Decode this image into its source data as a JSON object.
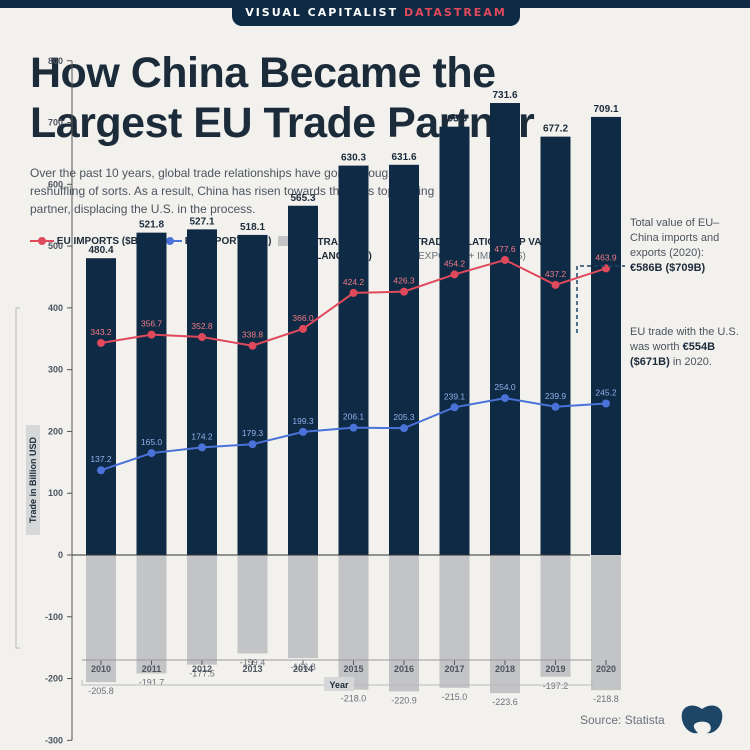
{
  "header": {
    "brand": "VISUAL CAPITALIST",
    "brand_accent": "DATASTREAM",
    "title_line1": "How China Became the",
    "title_line2": "Largest EU Trade Partner",
    "subtitle": "Over the past 10 years, global trade relationships have gone through a reshuffling of sorts. As a result, China has risen towards the EU's top trading partner, displacing the U.S. in the process."
  },
  "legend": {
    "imports": "EU IMPORTS ($B)",
    "exports": "EU EXPORTS ($B)",
    "balance_line1": "EU TRADE",
    "balance_line2": "BALANCE ($B)",
    "value_line1": "TRADE RELATIONSHIP VALUE",
    "value_line2": "(EXPORTS + IMPORTS)"
  },
  "annotations": {
    "china_total_text": "Total value of EU–China imports and exports (2020):",
    "china_total_value": "€586B ($709B)",
    "us_text_pre": "EU trade with the U.S. was worth",
    "us_value": "€554B ($671B)",
    "us_text_post": "in 2020."
  },
  "footer": {
    "source": "Source: Statista"
  },
  "colors": {
    "navy": "#0f2a44",
    "imports": "#e0495c",
    "exports": "#4a72d9",
    "balance": "#c3c4c6",
    "accent": "#e0495c"
  },
  "chart_data": {
    "type": "bar",
    "title": "How China Became the Largest EU Trade Partner",
    "xlabel": "Year",
    "ylabel": "Trade in Billion USD",
    "ylim": [
      -300,
      800
    ],
    "yticks": [
      800,
      700,
      600,
      500,
      400,
      300,
      200,
      100,
      0,
      -100,
      -200,
      -300
    ],
    "grid": false,
    "legend_position": "top",
    "categories": [
      "2010",
      "2011",
      "2012",
      "2013",
      "2014",
      "2015",
      "2016",
      "2017",
      "2018",
      "2019",
      "2020"
    ],
    "series": [
      {
        "name": "Trade Relationship Value (Exports + Imports)",
        "type": "bar",
        "values": [
          480.4,
          521.8,
          527.1,
          518.1,
          565.3,
          630.3,
          631.6,
          693.3,
          731.6,
          677.2,
          709.1
        ]
      },
      {
        "name": "EU Trade Balance ($B)",
        "type": "bar",
        "values": [
          -205.8,
          -191.7,
          -177.5,
          -159.4,
          -166.8,
          -218.0,
          -220.9,
          -215.0,
          -223.6,
          -197.2,
          -218.8
        ]
      },
      {
        "name": "EU Imports ($B)",
        "type": "line",
        "values": [
          343.2,
          356.7,
          352.8,
          338.8,
          366.0,
          424.2,
          426.3,
          454.2,
          477.6,
          437.2,
          463.9
        ]
      },
      {
        "name": "EU Exports ($B)",
        "type": "line",
        "values": [
          137.2,
          165.0,
          174.2,
          179.3,
          199.3,
          206.1,
          205.3,
          239.1,
          254.0,
          239.9,
          245.2
        ]
      }
    ]
  }
}
